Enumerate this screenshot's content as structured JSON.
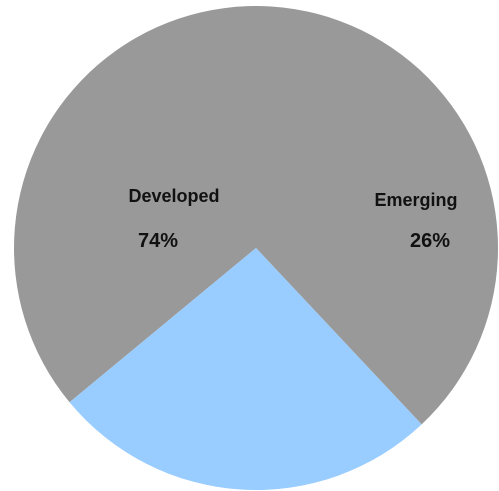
{
  "chart_data": {
    "type": "pie",
    "title": "",
    "slices": [
      {
        "label": "Developed",
        "value": 74,
        "value_text": "74%",
        "color": "#999999"
      },
      {
        "label": "Emerging",
        "value": 26,
        "value_text": "26%",
        "color": "#99ccff"
      }
    ],
    "legend": "none"
  }
}
